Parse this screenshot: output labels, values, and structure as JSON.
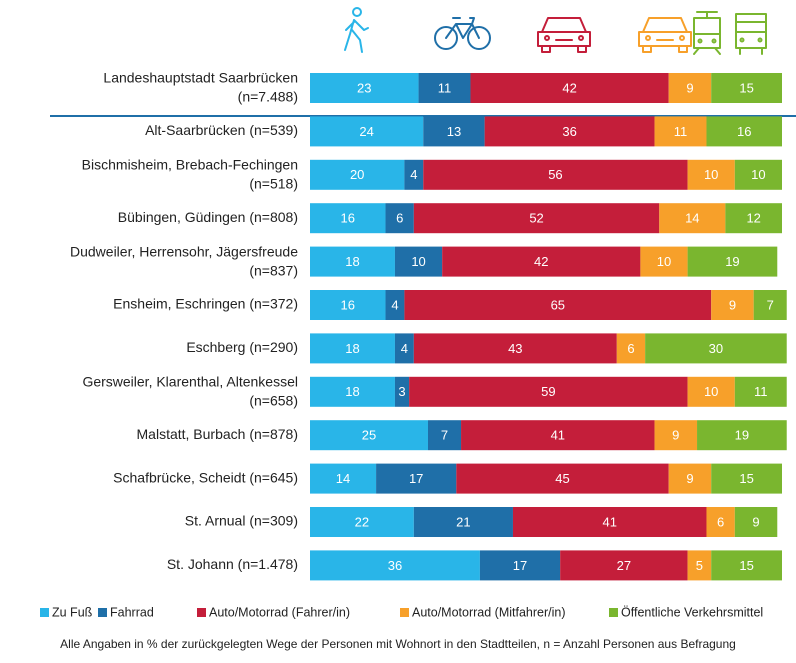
{
  "chart_data": {
    "type": "bar",
    "orientation": "horizontal",
    "stacked": true,
    "categories": [
      [
        "Landeshauptstadt Saarbrücken",
        "(n=7.488)"
      ],
      [
        "Alt-Saarbrücken (n=539)"
      ],
      [
        "Bischmisheim, Brebach-Fechingen",
        "(n=518)"
      ],
      [
        "Bübingen, Güdingen (n=808)"
      ],
      [
        "Dudweiler, Herrensohr, Jägersfreude",
        "(n=837)"
      ],
      [
        "Ensheim, Eschringen (n=372)"
      ],
      [
        "Eschberg (n=290)"
      ],
      [
        "Gersweiler, Klarenthal, Altenkessel",
        "(n=658)"
      ],
      [
        "Malstatt, Burbach (n=878)"
      ],
      [
        "Schafbrücke, Scheidt (n=645)"
      ],
      [
        "St. Arnual (n=309)"
      ],
      [
        "St. Johann (n=1.478)"
      ]
    ],
    "series": [
      {
        "name": "Zu Fuß",
        "color": "#29b5e8",
        "values": [
          23,
          24,
          20,
          16,
          18,
          16,
          18,
          18,
          25,
          14,
          22,
          36
        ]
      },
      {
        "name": "Fahrrad",
        "color": "#1f6fa8",
        "values": [
          11,
          13,
          4,
          6,
          10,
          4,
          4,
          3,
          7,
          17,
          21,
          17
        ]
      },
      {
        "name": "Auto/Motorrad (Fahrer/in)",
        "color": "#c41e3a",
        "values": [
          42,
          36,
          56,
          52,
          42,
          65,
          43,
          59,
          41,
          45,
          41,
          27
        ]
      },
      {
        "name": "Auto/Motorrad (Mitfahrer/in)",
        "color": "#f7a02a",
        "values": [
          9,
          11,
          10,
          14,
          10,
          9,
          6,
          10,
          9,
          9,
          6,
          5
        ]
      },
      {
        "name": "Öffentliche Verkehrsmittel",
        "color": "#7ab62f",
        "values": [
          15,
          16,
          10,
          12,
          19,
          7,
          30,
          11,
          19,
          15,
          9,
          15
        ]
      }
    ],
    "xlim": [
      0,
      100
    ],
    "footnote": "Alle Angaben in % der zurückgelegten Wege der Personen mit Wohnort in den Stadtteilen, n = Anzahl Personen aus Befragung"
  }
}
